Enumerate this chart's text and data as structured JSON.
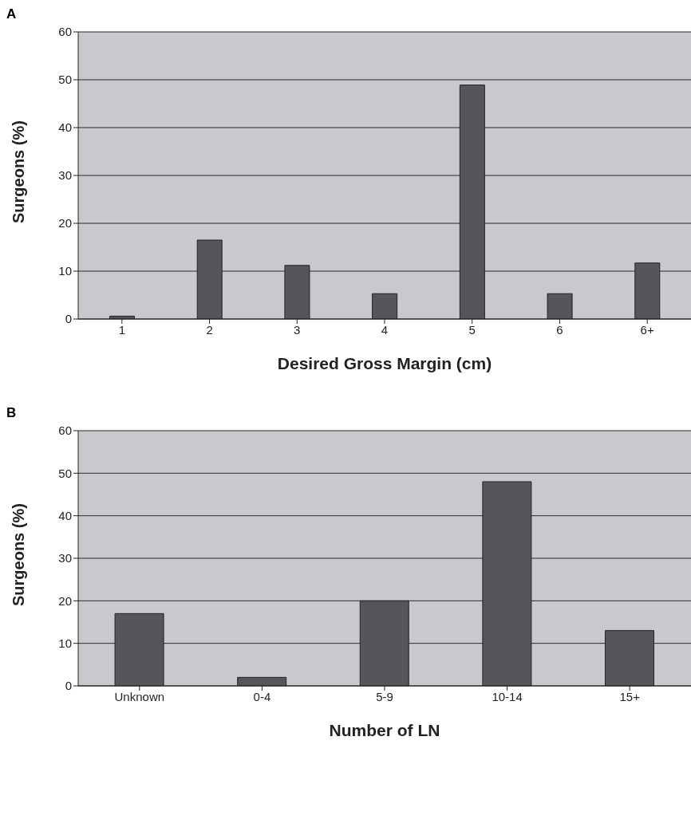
{
  "chart_data": [
    {
      "type": "bar",
      "title": "A",
      "xlabel": "Desired Gross Margin (cm)",
      "ylabel": "Surgeons (%)",
      "categories": [
        "1",
        "2",
        "3",
        "4",
        "5",
        "6",
        "6+"
      ],
      "values": [
        0.6,
        16.5,
        11.2,
        5.3,
        48.9,
        5.3,
        11.7
      ],
      "color": "#55565a",
      "ylim": [
        0,
        60
      ],
      "yticks": [
        0,
        10,
        20,
        30,
        40,
        50,
        60
      ],
      "grid": "y",
      "legend": false
    },
    {
      "type": "bar",
      "title": "B",
      "xlabel": "Number of LN",
      "ylabel": "Surgeons (%)",
      "categories": [
        "Unknown",
        "0-4",
        "5-9",
        "10-14",
        "15+"
      ],
      "values": [
        17,
        2,
        20,
        48,
        13
      ],
      "color": "#55565a",
      "ylim": [
        0,
        60
      ],
      "yticks": [
        0,
        10,
        20,
        30,
        40,
        50,
        60
      ],
      "grid": "y",
      "legend": false
    }
  ]
}
